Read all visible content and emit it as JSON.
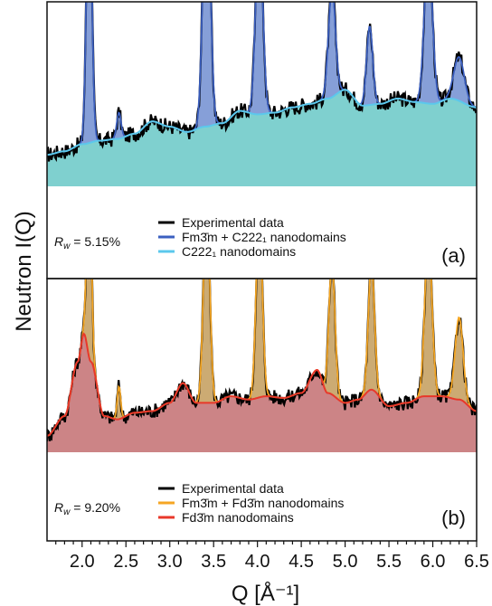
{
  "chart_data": {
    "type": "line",
    "xlabel": "Q [Å⁻¹]",
    "ylabel": "Neutron I(Q)",
    "xlim": [
      1.6,
      6.5
    ],
    "x_ticks": [
      "2.0",
      "2.5",
      "3.0",
      "3.5",
      "4.0",
      "4.5",
      "5.0",
      "5.5",
      "6.0",
      "6.5"
    ],
    "x_tick_values": [
      2.0,
      2.5,
      3.0,
      3.5,
      4.0,
      4.5,
      5.0,
      5.5,
      6.0,
      6.5
    ],
    "panels": [
      {
        "label": "(a)",
        "rw": "R_w = 5.15%",
        "rw_parts": {
          "symbol": "R",
          "sub": "w",
          "rest": " = 5.15%"
        },
        "legend_position": "bottom",
        "colors": {
          "data": "#000000",
          "total": "#3b5fc0",
          "total_fill": "#7f9ad6",
          "base": "#5bc8ec",
          "base_fill": "#7fd0cf"
        },
        "legend": [
          {
            "label": "Experimental data",
            "color": "#000000"
          },
          {
            "label": "Fm3̄m + C222₁ nanodomains",
            "color": "#3b5fc0"
          },
          {
            "label": "C222₁ nanodomains",
            "color": "#5bc8ec"
          }
        ],
        "baseline": {
          "x": [
            1.6,
            1.8,
            2.0,
            2.2,
            2.4,
            2.6,
            2.8,
            3.0,
            3.2,
            3.4,
            3.6,
            3.8,
            4.0,
            4.2,
            4.4,
            4.6,
            4.8,
            5.0,
            5.2,
            5.4,
            5.6,
            5.8,
            6.0,
            6.2,
            6.5
          ],
          "y": [
            0.18,
            0.2,
            0.24,
            0.26,
            0.27,
            0.3,
            0.37,
            0.34,
            0.31,
            0.34,
            0.36,
            0.43,
            0.41,
            0.42,
            0.45,
            0.47,
            0.5,
            0.55,
            0.46,
            0.47,
            0.5,
            0.48,
            0.47,
            0.5,
            0.45
          ]
        },
        "peaks": [
          {
            "center": 2.08,
            "height": 1.6,
            "width": 0.03
          },
          {
            "center": 2.42,
            "height": 0.15,
            "width": 0.025
          },
          {
            "center": 3.42,
            "height": 1.6,
            "width": 0.04
          },
          {
            "center": 4.02,
            "height": 1.1,
            "width": 0.04
          },
          {
            "center": 4.85,
            "height": 0.62,
            "width": 0.04
          },
          {
            "center": 5.28,
            "height": 0.45,
            "width": 0.035
          },
          {
            "center": 5.95,
            "height": 0.9,
            "width": 0.045
          },
          {
            "center": 6.3,
            "height": 0.25,
            "width": 0.06
          }
        ]
      },
      {
        "label": "(b)",
        "rw": "R_w = 9.20%",
        "rw_parts": {
          "symbol": "R",
          "sub": "w",
          "rest": " = 9.20%"
        },
        "legend_position": "bottom",
        "colors": {
          "data": "#000000",
          "total": "#f5a623",
          "total_fill": "#c9a66b",
          "base": "#e8382a",
          "base_fill": "#cc8486"
        },
        "legend": [
          {
            "label": "Experimental data",
            "color": "#000000"
          },
          {
            "label": "Fm3̄m + Fd3̄m nanodomains",
            "color": "#f5a623"
          },
          {
            "label": "Fd3̄m nanodomains",
            "color": "#e8382a"
          }
        ],
        "baseline": {
          "x": [
            1.6,
            1.8,
            1.95,
            2.02,
            2.1,
            2.25,
            2.4,
            2.6,
            2.8,
            3.0,
            3.15,
            3.3,
            3.5,
            3.7,
            3.9,
            4.1,
            4.3,
            4.5,
            4.68,
            4.8,
            5.0,
            5.15,
            5.3,
            5.5,
            5.7,
            5.9,
            6.1,
            6.3,
            6.5
          ],
          "y": [
            0.1,
            0.22,
            0.55,
            0.72,
            0.55,
            0.22,
            0.2,
            0.24,
            0.25,
            0.3,
            0.42,
            0.3,
            0.3,
            0.34,
            0.32,
            0.34,
            0.33,
            0.36,
            0.5,
            0.36,
            0.3,
            0.32,
            0.38,
            0.28,
            0.3,
            0.34,
            0.34,
            0.32,
            0.25
          ]
        },
        "peaks": [
          {
            "center": 2.08,
            "height": 1.3,
            "width": 0.025
          },
          {
            "center": 2.42,
            "height": 0.2,
            "width": 0.02
          },
          {
            "center": 3.42,
            "height": 1.3,
            "width": 0.035
          },
          {
            "center": 4.02,
            "height": 1.15,
            "width": 0.035
          },
          {
            "center": 4.85,
            "height": 0.8,
            "width": 0.035
          },
          {
            "center": 5.3,
            "height": 0.78,
            "width": 0.035
          },
          {
            "center": 5.95,
            "height": 1.0,
            "width": 0.04
          },
          {
            "center": 6.3,
            "height": 0.5,
            "width": 0.045
          }
        ]
      }
    ]
  }
}
